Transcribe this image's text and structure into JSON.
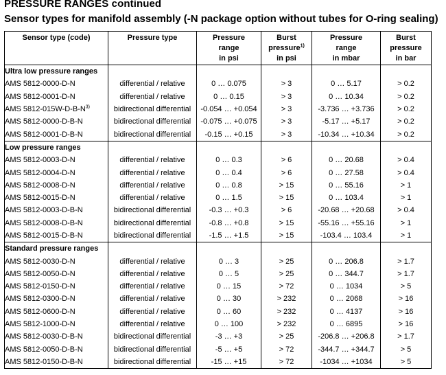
{
  "title": "PRESSURE RANGES continued",
  "subtitle": "Sensor types for manifold assembly (-N package option without tubes for O-ring sealing)",
  "headers": {
    "code": "Sensor type (code)",
    "type": "Pressure type",
    "range_psi": [
      "Pressure",
      "range",
      "in psi"
    ],
    "burst_psi": [
      "Burst",
      "pressure",
      "1)",
      "in psi"
    ],
    "range_mbar": [
      "Pressure",
      "range",
      "in mbar"
    ],
    "burst_bar": [
      "Burst",
      "pressure",
      "in bar"
    ]
  },
  "groups": [
    {
      "title": "Ultra low pressure ranges",
      "rows": [
        {
          "code": "AMS 5812-0000-D-N",
          "sup": "",
          "type": "differential / relative",
          "range_psi": "0 … 0.075",
          "burst_psi": "> 3",
          "range_mbar": "0 … 5.17",
          "burst_bar": "> 0.2"
        },
        {
          "code": "AMS 5812-0001-D-N",
          "sup": "",
          "type": "differential / relative",
          "range_psi": "0 … 0.15",
          "burst_psi": "> 3",
          "range_mbar": "0 … 10.34",
          "burst_bar": "> 0.2"
        },
        {
          "code": "AMS 5812-015W-D-B-N",
          "sup": "3)",
          "type": "bidirectional differential",
          "range_psi": "-0.054 … +0.054",
          "burst_psi": "> 3",
          "range_mbar": "-3.736 … +3.736",
          "burst_bar": "> 0.2"
        },
        {
          "code": "AMS 5812-0000-D-B-N",
          "sup": "",
          "type": "bidirectional differential",
          "range_psi": "-0.075 … +0.075",
          "burst_psi": "> 3",
          "range_mbar": "-5.17 … +5.17",
          "burst_bar": "> 0.2"
        },
        {
          "code": "AMS 5812-0001-D-B-N",
          "sup": "",
          "type": "bidirectional differential",
          "range_psi": "-0.15 … +0.15",
          "burst_psi": "> 3",
          "range_mbar": "-10.34 … +10.34",
          "burst_bar": "> 0.2"
        }
      ]
    },
    {
      "title": "Low pressure ranges",
      "rows": [
        {
          "code": "AMS 5812-0003-D-N",
          "sup": "",
          "type": "differential / relative",
          "range_psi": "0 … 0.3",
          "burst_psi": "> 6",
          "range_mbar": "0 … 20.68",
          "burst_bar": "> 0.4"
        },
        {
          "code": "AMS 5812-0004-D-N",
          "sup": "",
          "type": "differential / relative",
          "range_psi": "0 … 0.4",
          "burst_psi": "> 6",
          "range_mbar": "0 … 27.58",
          "burst_bar": "> 0.4"
        },
        {
          "code": "AMS 5812-0008-D-N",
          "sup": "",
          "type": "differential / relative",
          "range_psi": "0 … 0.8",
          "burst_psi": "> 15",
          "range_mbar": "0 … 55.16",
          "burst_bar": "> 1"
        },
        {
          "code": "AMS 5812-0015-D-N",
          "sup": "",
          "type": "differential / relative",
          "range_psi": "0 … 1.5",
          "burst_psi": "> 15",
          "range_mbar": "0 … 103.4",
          "burst_bar": "> 1"
        },
        {
          "code": "AMS 5812-0003-D-B-N",
          "sup": "",
          "type": "bidirectional differential",
          "range_psi": "-0.3 … +0.3",
          "burst_psi": "> 6",
          "range_mbar": "-20.68 … +20.68",
          "burst_bar": "> 0.4"
        },
        {
          "code": "AMS 5812-0008-D-B-N",
          "sup": "",
          "type": "bidirectional differential",
          "range_psi": "-0.8 … +0.8",
          "burst_psi": "> 15",
          "range_mbar": "-55.16 … +55.16",
          "burst_bar": "> 1"
        },
        {
          "code": "AMS 5812-0015-D-B-N",
          "sup": "",
          "type": "bidirectional differential",
          "range_psi": "-1.5 … +1.5",
          "burst_psi": "> 15",
          "range_mbar": "-103.4 … 103.4",
          "burst_bar": "> 1"
        }
      ]
    },
    {
      "title": "Standard pressure ranges",
      "rows": [
        {
          "code": "AMS 5812-0030-D-N",
          "sup": "",
          "type": "differential / relative",
          "range_psi": "0 … 3",
          "burst_psi": "> 25",
          "range_mbar": "0 … 206.8",
          "burst_bar": "> 1.7"
        },
        {
          "code": "AMS 5812-0050-D-N",
          "sup": "",
          "type": "differential / relative",
          "range_psi": "0 … 5",
          "burst_psi": "> 25",
          "range_mbar": "0 … 344.7",
          "burst_bar": "> 1.7"
        },
        {
          "code": "AMS 5812-0150-D-N",
          "sup": "",
          "type": "differential / relative",
          "range_psi": "0 … 15",
          "burst_psi": "> 72",
          "range_mbar": "0 … 1034",
          "burst_bar": "> 5"
        },
        {
          "code": "AMS 5812-0300-D-N",
          "sup": "",
          "type": "differential / relative",
          "range_psi": "0 … 30",
          "burst_psi": "> 232",
          "range_mbar": "0 … 2068",
          "burst_bar": "> 16"
        },
        {
          "code": "AMS 5812-0600-D-N",
          "sup": "",
          "type": "differential / relative",
          "range_psi": "0 … 60",
          "burst_psi": "> 232",
          "range_mbar": "0 … 4137",
          "burst_bar": "> 16"
        },
        {
          "code": "AMS 5812-1000-D-N",
          "sup": "",
          "type": "differential / relative",
          "range_psi": "0 … 100",
          "burst_psi": "> 232",
          "range_mbar": "0 … 6895",
          "burst_bar": "> 16"
        },
        {
          "code": "AMS 5812-0030-D-B-N",
          "sup": "",
          "type": "bidirectional differential",
          "range_psi": "-3 … +3",
          "burst_psi": "> 25",
          "range_mbar": "-206.8 … +206.8",
          "burst_bar": "> 1.7"
        },
        {
          "code": "AMS 5812-0050-D-B-N",
          "sup": "",
          "type": "bidirectional differential",
          "range_psi": "-5 … +5",
          "burst_psi": "> 72",
          "range_mbar": "-344.7 … +344.7",
          "burst_bar": "> 5"
        },
        {
          "code": "AMS 5812-0150-D-B-N",
          "sup": "",
          "type": "bidirectional differential",
          "range_psi": "-15 … +15",
          "burst_psi": "> 72",
          "range_mbar": "-1034 … +1034",
          "burst_bar": "> 5"
        }
      ]
    }
  ]
}
